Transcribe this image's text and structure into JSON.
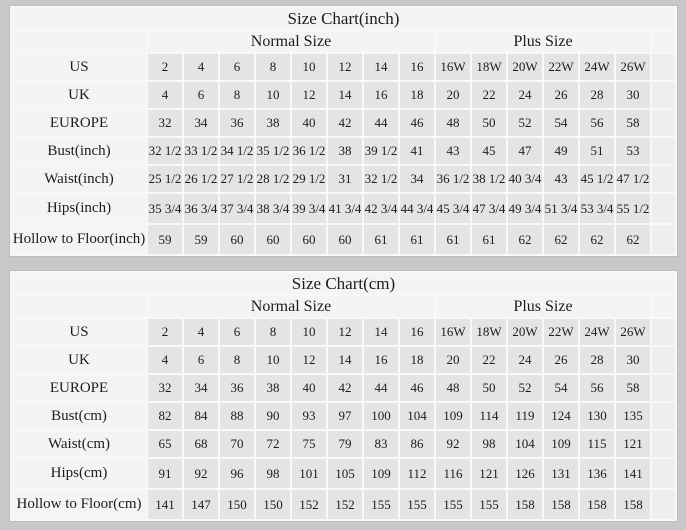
{
  "colors": {
    "page_bg": "#c8c8c8",
    "table_gap": "#f8f8f8",
    "title_bg": "#f4f4f4",
    "header_bg": "#f4f4f4",
    "label_bg": "#f4f4f4",
    "cell_bg": "#e4e4e4",
    "trail_bg": "#eeeeee",
    "border": "#bdbdbd",
    "text": "#1c1c1c"
  },
  "chart_data": [
    {
      "type": "table",
      "title": "Size Chart(inch)",
      "group_headers": [
        {
          "label": "Normal Size",
          "span": 8
        },
        {
          "label": "Plus Size",
          "span": 6
        }
      ],
      "rows": [
        {
          "label": "US",
          "values": [
            "2",
            "4",
            "6",
            "8",
            "10",
            "12",
            "14",
            "16",
            "16W",
            "18W",
            "20W",
            "22W",
            "24W",
            "26W"
          ]
        },
        {
          "label": "UK",
          "values": [
            "4",
            "6",
            "8",
            "10",
            "12",
            "14",
            "16",
            "18",
            "20",
            "22",
            "24",
            "26",
            "28",
            "30"
          ]
        },
        {
          "label": "EUROPE",
          "values": [
            "32",
            "34",
            "36",
            "38",
            "40",
            "42",
            "44",
            "46",
            "48",
            "50",
            "52",
            "54",
            "56",
            "58"
          ]
        },
        {
          "label": "Bust(inch)",
          "values": [
            "32 1/2",
            "33 1/2",
            "34 1/2",
            "35 1/2",
            "36 1/2",
            "38",
            "39 1/2",
            "41",
            "43",
            "45",
            "47",
            "49",
            "51",
            "53"
          ]
        },
        {
          "label": "Waist(inch)",
          "values": [
            "25 1/2",
            "26 1/2",
            "27 1/2",
            "28 1/2",
            "29 1/2",
            "31",
            "32 1/2",
            "34",
            "36 1/2",
            "38 1/2",
            "40 3/4",
            "43",
            "45 1/2",
            "47 1/2"
          ]
        },
        {
          "label": "Hips(inch)",
          "values": [
            "35 3/4",
            "36 3/4",
            "37 3/4",
            "38 3/4",
            "39 3/4",
            "41 3/4",
            "42 3/4",
            "44 3/4",
            "45 3/4",
            "47 3/4",
            "49 3/4",
            "51 3/4",
            "53 3/4",
            "55 1/2"
          ]
        },
        {
          "label": "Hollow to Floor(inch)",
          "values": [
            "59",
            "59",
            "60",
            "60",
            "60",
            "60",
            "61",
            "61",
            "61",
            "61",
            "62",
            "62",
            "62",
            "62"
          ]
        }
      ]
    },
    {
      "type": "table",
      "title": "Size Chart(cm)",
      "group_headers": [
        {
          "label": "Normal Size",
          "span": 8
        },
        {
          "label": "Plus Size",
          "span": 6
        }
      ],
      "rows": [
        {
          "label": "US",
          "values": [
            "2",
            "4",
            "6",
            "8",
            "10",
            "12",
            "14",
            "16",
            "16W",
            "18W",
            "20W",
            "22W",
            "24W",
            "26W"
          ]
        },
        {
          "label": "UK",
          "values": [
            "4",
            "6",
            "8",
            "10",
            "12",
            "14",
            "16",
            "18",
            "20",
            "22",
            "24",
            "26",
            "28",
            "30"
          ]
        },
        {
          "label": "EUROPE",
          "values": [
            "32",
            "34",
            "36",
            "38",
            "40",
            "42",
            "44",
            "46",
            "48",
            "50",
            "52",
            "54",
            "56",
            "58"
          ]
        },
        {
          "label": "Bust(cm)",
          "values": [
            "82",
            "84",
            "88",
            "90",
            "93",
            "97",
            "100",
            "104",
            "109",
            "114",
            "119",
            "124",
            "130",
            "135"
          ]
        },
        {
          "label": "Waist(cm)",
          "values": [
            "65",
            "68",
            "70",
            "72",
            "75",
            "79",
            "83",
            "86",
            "92",
            "98",
            "104",
            "109",
            "115",
            "121"
          ]
        },
        {
          "label": "Hips(cm)",
          "values": [
            "91",
            "92",
            "96",
            "98",
            "101",
            "105",
            "109",
            "112",
            "116",
            "121",
            "126",
            "131",
            "136",
            "141"
          ]
        },
        {
          "label": "Hollow to Floor(cm)",
          "values": [
            "141",
            "147",
            "150",
            "150",
            "152",
            "152",
            "155",
            "155",
            "155",
            "155",
            "158",
            "158",
            "158",
            "158"
          ]
        }
      ]
    }
  ]
}
